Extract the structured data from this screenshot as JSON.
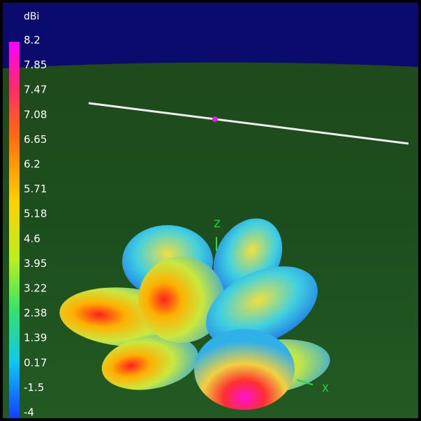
{
  "colorbar": {
    "unit": "dBi",
    "labels": [
      "8.2",
      "7.85",
      "7.47",
      "7.08",
      "6.65",
      "6.2",
      "5.71",
      "5.18",
      "4.6",
      "3.95",
      "3.22",
      "2.38",
      "1.39",
      "0.17",
      "-1.5",
      "-4"
    ]
  },
  "axes": {
    "z": "Z",
    "x": "X"
  }
}
